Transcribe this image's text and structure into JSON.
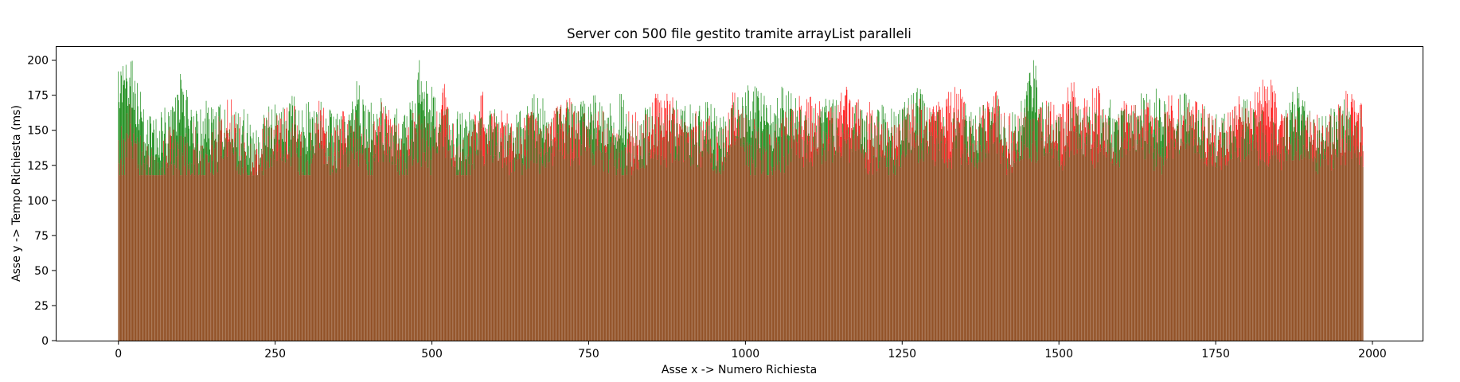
{
  "chart_data": {
    "type": "bar",
    "title": "Server con 500 file gestito tramite arrayList paralleli",
    "xlabel": "Asse x -> Numero Richiesta",
    "ylabel": "Asse y -> Tempo Richiesta (ms)",
    "xlim": [
      -100,
      2080
    ],
    "ylim": [
      0,
      210
    ],
    "xticks": [
      0,
      250,
      500,
      750,
      1000,
      1250,
      1500,
      1750,
      2000
    ],
    "yticks": [
      0,
      25,
      50,
      75,
      100,
      125,
      150,
      175,
      200
    ],
    "grid": false,
    "legend": "none",
    "bar_count": 1986,
    "colors": {
      "series_a": "#ff0000",
      "series_b": "#008000",
      "overlap": "#7f3300"
    },
    "series": [
      {
        "color": "#ff0000",
        "x_start": 0,
        "x_step": 1,
        "sample_every": 20,
        "values": [
          143,
          166,
          142,
          131,
          150,
          146,
          156,
          138,
          160,
          172,
          149,
          141,
          163,
          158,
          167,
          133,
          171,
          148,
          160,
          159,
          144,
          170,
          155,
          152,
          162,
          150,
          183,
          138,
          149,
          175,
          160,
          162,
          155,
          164,
          148,
          167,
          173,
          159,
          162,
          155,
          146,
          161,
          157,
          176,
          171,
          152,
          160,
          158,
          150,
          177,
          162,
          149,
          145,
          159,
          166,
          170,
          165,
          163,
          175,
          172,
          162,
          155,
          148,
          168,
          165,
          167,
          172,
          176,
          158,
          164,
          178,
          160,
          163,
          158,
          171,
          162,
          184,
          166,
          180,
          157,
          166,
          168,
          170,
          152,
          175,
          164,
          170,
          162,
          157,
          167,
          166,
          181,
          182,
          160,
          164,
          163,
          152,
          160,
          176,
          168
        ]
      },
      {
        "color": "#008000",
        "x_start": 0,
        "x_step": 1,
        "sample_every": 20,
        "values": [
          192,
          199,
          165,
          158,
          163,
          186,
          160,
          171,
          167,
          160,
          165,
          150,
          167,
          163,
          174,
          169,
          163,
          162,
          158,
          185,
          163,
          169,
          159,
          160,
          200,
          181,
          164,
          158,
          163,
          158,
          165,
          154,
          163,
          173,
          164,
          163,
          163,
          167,
          175,
          159,
          176,
          155,
          166,
          158,
          165,
          164,
          162,
          166,
          159,
          166,
          177,
          178,
          168,
          180,
          173,
          159,
          164,
          172,
          160,
          170,
          155,
          167,
          160,
          173,
          176,
          162,
          158,
          164,
          163,
          168,
          173,
          154,
          171,
          200,
          168,
          157,
          169,
          161,
          165,
          166,
          164,
          164,
          176,
          173,
          158,
          176,
          162,
          162,
          159,
          164,
          172,
          160,
          159,
          160,
          181,
          164,
          160,
          163,
          166,
          159
        ]
      }
    ]
  }
}
